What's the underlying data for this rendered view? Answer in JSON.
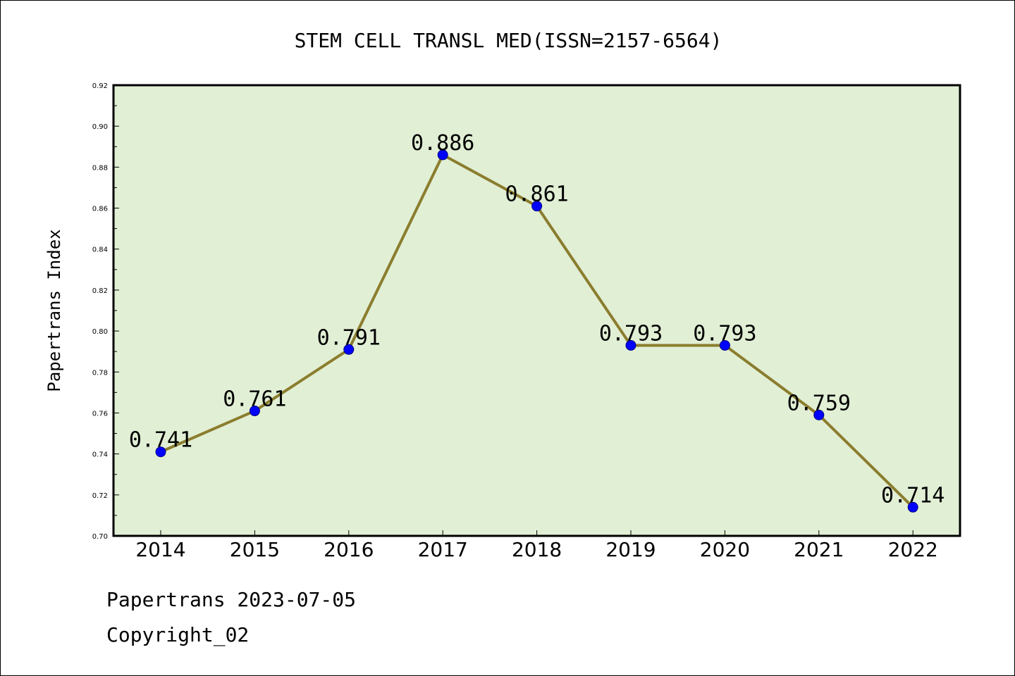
{
  "colors": {
    "plot_background": "#e1efd5",
    "line": "#8b7d2e",
    "marker_fill": "#0000ff",
    "marker_stroke": "#000080",
    "frame": "#000000"
  },
  "footer": {
    "date_line": "Papertrans 2023-07-05",
    "copyright_line": "Copyright_02"
  },
  "chart_data": {
    "type": "line",
    "title": "STEM CELL TRANSL MED(ISSN=2157-6564)",
    "xlabel": "",
    "ylabel": "Papertrans Index",
    "categories": [
      "2014",
      "2015",
      "2016",
      "2017",
      "2018",
      "2019",
      "2020",
      "2021",
      "2022"
    ],
    "series": [
      {
        "values": [
          0.741,
          0.761,
          0.791,
          0.886,
          0.861,
          0.793,
          0.793,
          0.759,
          0.714
        ],
        "labels": [
          "0.741",
          "0.761",
          "0.791",
          "0.886",
          "0.861",
          "0.793",
          "0.793",
          "0.759",
          "0.714"
        ]
      }
    ],
    "ylim": [
      0.7,
      0.92
    ],
    "yticks": [
      0.7,
      0.72,
      0.74,
      0.76,
      0.78,
      0.8,
      0.82,
      0.84,
      0.86,
      0.88,
      0.9,
      0.92
    ],
    "ytick_labels": [
      "0.70",
      "0.72",
      "0.74",
      "0.76",
      "0.78",
      "0.80",
      "0.82",
      "0.84",
      "0.86",
      "0.88",
      "0.90",
      "0.92"
    ],
    "grid": false,
    "legend": "none"
  }
}
